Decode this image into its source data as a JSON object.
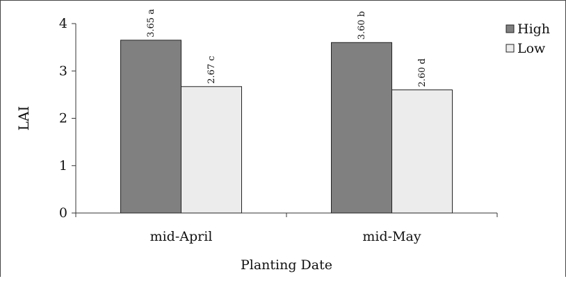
{
  "chart_data": {
    "type": "bar",
    "title": "",
    "xlabel": "Planting Date",
    "ylabel": "LAI",
    "ylim": [
      0,
      4
    ],
    "yticks": [
      "0",
      "1",
      "2",
      "3",
      "4"
    ],
    "categories": [
      "mid-April",
      "mid-May"
    ],
    "series": [
      {
        "name": "High",
        "values": [
          3.65,
          3.6
        ],
        "labels": [
          "3.65 a",
          "3.60 b"
        ],
        "color": "#808080"
      },
      {
        "name": "Low",
        "values": [
          2.67,
          2.6
        ],
        "labels": [
          "2.67 c",
          "2.60 d"
        ],
        "color": "#ececec"
      }
    ],
    "legend_position": "top-right",
    "grid": false
  }
}
